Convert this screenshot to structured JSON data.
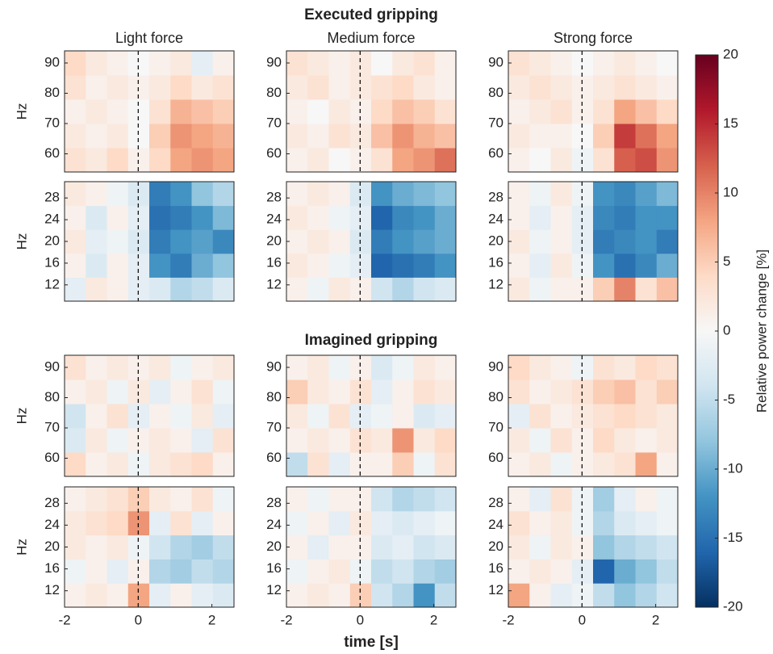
{
  "figure": {
    "titles": [
      "Executed gripping",
      "Imagined gripping"
    ],
    "xlabel": "time [s]",
    "marker_x": 0,
    "colorbar": {
      "label": "Relative power change [%]",
      "lim": [
        -20,
        20
      ],
      "ticks": [
        -20,
        -15,
        -10,
        -5,
        0,
        5,
        10,
        15,
        20
      ],
      "colormap": [
        "#053061",
        "#2166ac",
        "#4393c3",
        "#92c5de",
        "#d1e5f0",
        "#f7f7f7",
        "#fddbc7",
        "#f4a582",
        "#d6604d",
        "#b2182b",
        "#67001f"
      ]
    }
  },
  "chart_data": [
    {
      "type": "heatmap",
      "title": "Light force",
      "ylabel": "Hz",
      "xlim": [
        -2,
        2.6
      ],
      "ylim": [
        54,
        94
      ],
      "yticks": [
        60,
        70,
        80,
        90
      ],
      "values": [
        [
          3,
          2,
          4,
          1,
          4,
          8,
          9,
          8
        ],
        [
          2,
          1,
          2,
          0,
          5,
          9,
          8,
          7
        ],
        [
          1,
          2,
          1,
          0,
          3,
          7,
          6,
          5
        ],
        [
          3,
          1,
          2,
          1,
          2,
          4,
          2,
          3
        ],
        [
          4,
          2,
          1,
          0,
          1,
          2,
          -2,
          1
        ]
      ]
    },
    {
      "type": "heatmap",
      "title": "Medium force",
      "xlim": [
        -2,
        2.6
      ],
      "ylim": [
        54,
        94
      ],
      "yticks": [
        60,
        70,
        80,
        90
      ],
      "values": [
        [
          1,
          2,
          0,
          1,
          3,
          8,
          9,
          11
        ],
        [
          2,
          1,
          3,
          2,
          6,
          9,
          7,
          6
        ],
        [
          1,
          0,
          2,
          1,
          4,
          6,
          5,
          3
        ],
        [
          2,
          3,
          1,
          2,
          3,
          4,
          2,
          1
        ],
        [
          3,
          2,
          1,
          2,
          0,
          2,
          3,
          1
        ]
      ]
    },
    {
      "type": "heatmap",
      "title": "Strong force",
      "xlim": [
        -2,
        2.6
      ],
      "ylim": [
        54,
        94
      ],
      "yticks": [
        60,
        70,
        80,
        90
      ],
      "values": [
        [
          1,
          0,
          2,
          -1,
          3,
          12,
          13,
          9
        ],
        [
          2,
          1,
          1,
          0,
          5,
          14,
          11,
          8
        ],
        [
          1,
          2,
          3,
          1,
          3,
          8,
          6,
          4
        ],
        [
          2,
          3,
          2,
          1,
          2,
          3,
          2,
          1
        ],
        [
          3,
          2,
          1,
          0,
          1,
          2,
          1,
          0
        ]
      ]
    },
    {
      "type": "heatmap",
      "ylabel": "Hz",
      "xlim": [
        -2,
        2.6
      ],
      "ylim": [
        9,
        31
      ],
      "yticks": [
        12,
        16,
        20,
        24,
        28
      ],
      "values": [
        [
          -2,
          2,
          1,
          -2,
          -3,
          -6,
          -5,
          -3
        ],
        [
          1,
          -3,
          1,
          -2,
          -12,
          -14,
          -10,
          -8
        ],
        [
          2,
          -2,
          -1,
          -3,
          -14,
          -12,
          -11,
          -13
        ],
        [
          1,
          -3,
          1,
          -2,
          -15,
          -14,
          -12,
          -9
        ],
        [
          2,
          1,
          -1,
          -3,
          -14,
          -12,
          -8,
          -6
        ]
      ]
    },
    {
      "type": "heatmap",
      "xlim": [
        -2,
        2.6
      ],
      "ylim": [
        9,
        31
      ],
      "yticks": [
        12,
        16,
        20,
        24,
        28
      ],
      "values": [
        [
          1,
          -1,
          2,
          1,
          -4,
          -6,
          -4,
          -3
        ],
        [
          2,
          1,
          -1,
          -2,
          -16,
          -15,
          -14,
          -12
        ],
        [
          1,
          2,
          1,
          -3,
          -14,
          -12,
          -11,
          -10
        ],
        [
          2,
          1,
          -1,
          -2,
          -16,
          -13,
          -12,
          -10
        ],
        [
          1,
          2,
          1,
          -3,
          -12,
          -10,
          -9,
          -8
        ]
      ]
    },
    {
      "type": "heatmap",
      "xlim": [
        -2,
        2.6
      ],
      "ylim": [
        9,
        31
      ],
      "yticks": [
        12,
        16,
        20,
        24,
        28
      ],
      "values": [
        [
          2,
          -1,
          1,
          1,
          5,
          10,
          3,
          6
        ],
        [
          1,
          -2,
          2,
          -1,
          -12,
          -15,
          -13,
          -10
        ],
        [
          2,
          -1,
          1,
          -2,
          -14,
          -13,
          -12,
          -14
        ],
        [
          1,
          -2,
          1,
          -2,
          -13,
          -14,
          -12,
          -12
        ],
        [
          1,
          -1,
          2,
          -1,
          -12,
          -13,
          -11,
          -9
        ]
      ]
    },
    {
      "type": "heatmap",
      "ylabel": "Hz",
      "xlim": [
        -2,
        2.6
      ],
      "ylim": [
        54,
        94
      ],
      "yticks": [
        60,
        70,
        80,
        90
      ],
      "values": [
        [
          4,
          1,
          2,
          -1,
          2,
          3,
          4,
          1
        ],
        [
          -3,
          2,
          -1,
          1,
          2,
          1,
          -2,
          3
        ],
        [
          -4,
          1,
          3,
          -2,
          1,
          -1,
          2,
          -2
        ],
        [
          1,
          2,
          -1,
          2,
          -2,
          1,
          3,
          -1
        ],
        [
          3,
          1,
          2,
          1,
          2,
          -1,
          1,
          2
        ]
      ]
    },
    {
      "type": "heatmap",
      "xlim": [
        -2,
        2.6
      ],
      "ylim": [
        54,
        94
      ],
      "yticks": [
        60,
        70,
        80,
        90
      ],
      "values": [
        [
          -5,
          3,
          -2,
          1,
          1,
          5,
          -1,
          3
        ],
        [
          1,
          2,
          1,
          3,
          2,
          9,
          2,
          4
        ],
        [
          2,
          -1,
          3,
          -2,
          -1,
          1,
          -3,
          -2
        ],
        [
          5,
          2,
          1,
          3,
          -2,
          1,
          3,
          2
        ],
        [
          1,
          2,
          -1,
          1,
          -3,
          -1,
          2,
          1
        ]
      ]
    },
    {
      "type": "heatmap",
      "xlim": [
        -2,
        2.6
      ],
      "ylim": [
        54,
        94
      ],
      "yticks": [
        60,
        70,
        80,
        90
      ],
      "values": [
        [
          1,
          2,
          -1,
          1,
          2,
          3,
          8,
          1
        ],
        [
          2,
          -1,
          3,
          1,
          4,
          2,
          1,
          2
        ],
        [
          -2,
          3,
          1,
          2,
          3,
          4,
          3,
          2
        ],
        [
          3,
          1,
          2,
          3,
          5,
          6,
          3,
          5
        ],
        [
          4,
          2,
          1,
          -1,
          3,
          2,
          4,
          3
        ]
      ]
    },
    {
      "type": "heatmap",
      "ylabel": "Hz",
      "xlim": [
        -2,
        2.6
      ],
      "ylim": [
        9,
        31
      ],
      "yticks": [
        12,
        16,
        20,
        24,
        28
      ],
      "xticks": [
        -2,
        0,
        2
      ],
      "values": [
        [
          1,
          2,
          1,
          8,
          -2,
          1,
          -2,
          -3
        ],
        [
          -1,
          1,
          -2,
          1,
          -6,
          -7,
          -5,
          -6
        ],
        [
          2,
          1,
          2,
          -1,
          -4,
          -6,
          -7,
          -5
        ],
        [
          2,
          3,
          4,
          9,
          -2,
          3,
          -2,
          1
        ],
        [
          1,
          2,
          3,
          5,
          2,
          1,
          3,
          -1
        ]
      ]
    },
    {
      "type": "heatmap",
      "xlim": [
        -2,
        2.6
      ],
      "ylim": [
        9,
        31
      ],
      "yticks": [
        12,
        16,
        20,
        24,
        28
      ],
      "xticks": [
        -2,
        0,
        2
      ],
      "values": [
        [
          1,
          2,
          1,
          5,
          -4,
          -6,
          -12,
          -5
        ],
        [
          -1,
          1,
          2,
          -1,
          -5,
          -4,
          -6,
          -7
        ],
        [
          1,
          -2,
          1,
          1,
          -3,
          -2,
          -4,
          -3
        ],
        [
          -1,
          1,
          -2,
          2,
          -2,
          -3,
          -2,
          -1
        ],
        [
          1,
          -1,
          1,
          1,
          -4,
          -6,
          -5,
          -4
        ]
      ]
    },
    {
      "type": "heatmap",
      "xlim": [
        -2,
        2.6
      ],
      "ylim": [
        9,
        31
      ],
      "yticks": [
        12,
        16,
        20,
        24,
        28
      ],
      "xticks": [
        -2,
        0,
        2
      ],
      "values": [
        [
          8,
          1,
          -2,
          -1,
          -5,
          -8,
          -6,
          -4
        ],
        [
          1,
          2,
          1,
          -2,
          -16,
          -10,
          -8,
          -5
        ],
        [
          2,
          -1,
          2,
          1,
          -8,
          -6,
          -5,
          -4
        ],
        [
          3,
          1,
          2,
          -1,
          -6,
          -3,
          -2,
          -1
        ],
        [
          1,
          -2,
          3,
          -1,
          -7,
          -2,
          1,
          -1
        ]
      ]
    }
  ]
}
